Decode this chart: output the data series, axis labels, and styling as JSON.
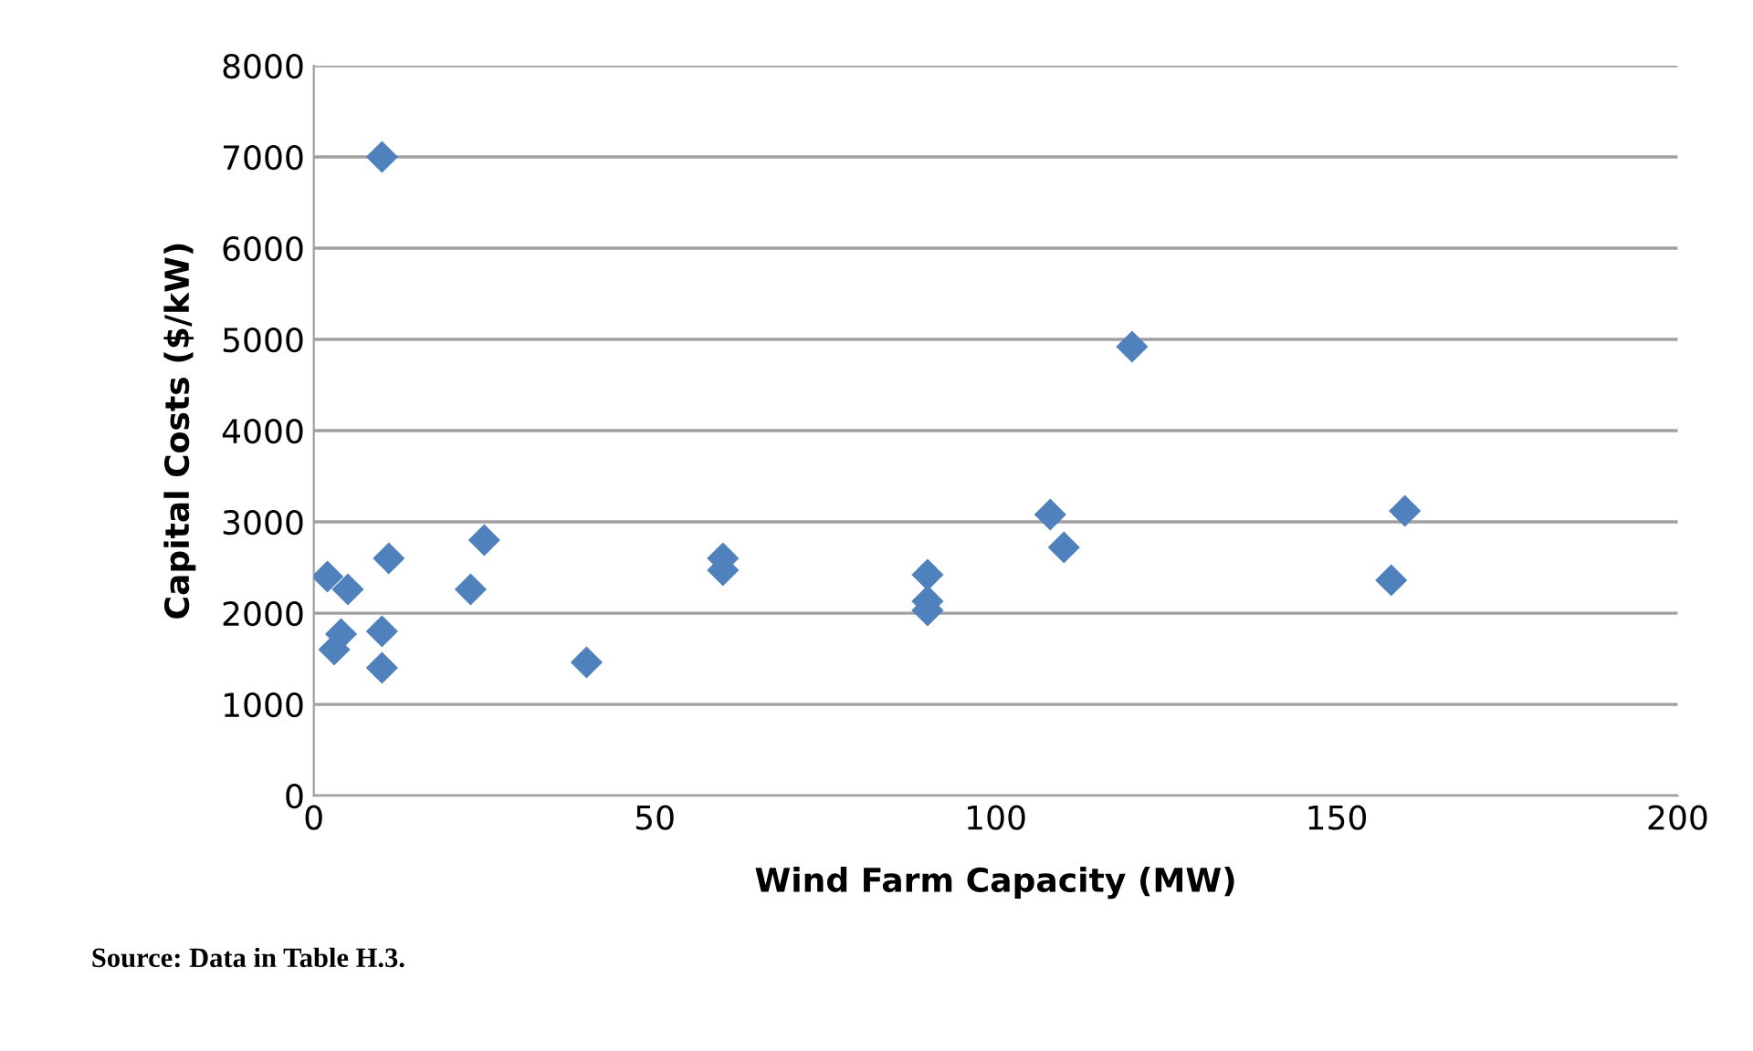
{
  "chart_data": {
    "type": "scatter",
    "xlabel": "Wind Farm Capacity (MW)",
    "ylabel": "Capital Costs ($/kW)",
    "annotations": [
      "Source: Data in Table H.3."
    ],
    "series": [
      {
        "color": "#4f81bd",
        "marker": "diamond",
        "x": [
          2,
          3,
          4,
          5,
          10,
          11,
          10,
          10,
          23,
          25,
          40,
          60,
          60,
          90,
          90,
          90,
          108,
          110,
          120,
          158,
          160
        ],
        "values": [
          2400,
          1600,
          1770,
          2260,
          7000,
          2600,
          1800,
          1400,
          2260,
          2800,
          1460,
          2600,
          2470,
          2420,
          2130,
          2030,
          3080,
          2720,
          4920,
          2360,
          3120
        ]
      }
    ],
    "xlim": [
      0,
      200
    ],
    "xticks": [
      0,
      50,
      100,
      150,
      200
    ],
    "ylim": [
      0,
      8000
    ],
    "yticks": [
      0,
      1000,
      2000,
      3000,
      4000,
      5000,
      6000,
      7000,
      8000
    ],
    "grid": "y",
    "legend": false
  }
}
